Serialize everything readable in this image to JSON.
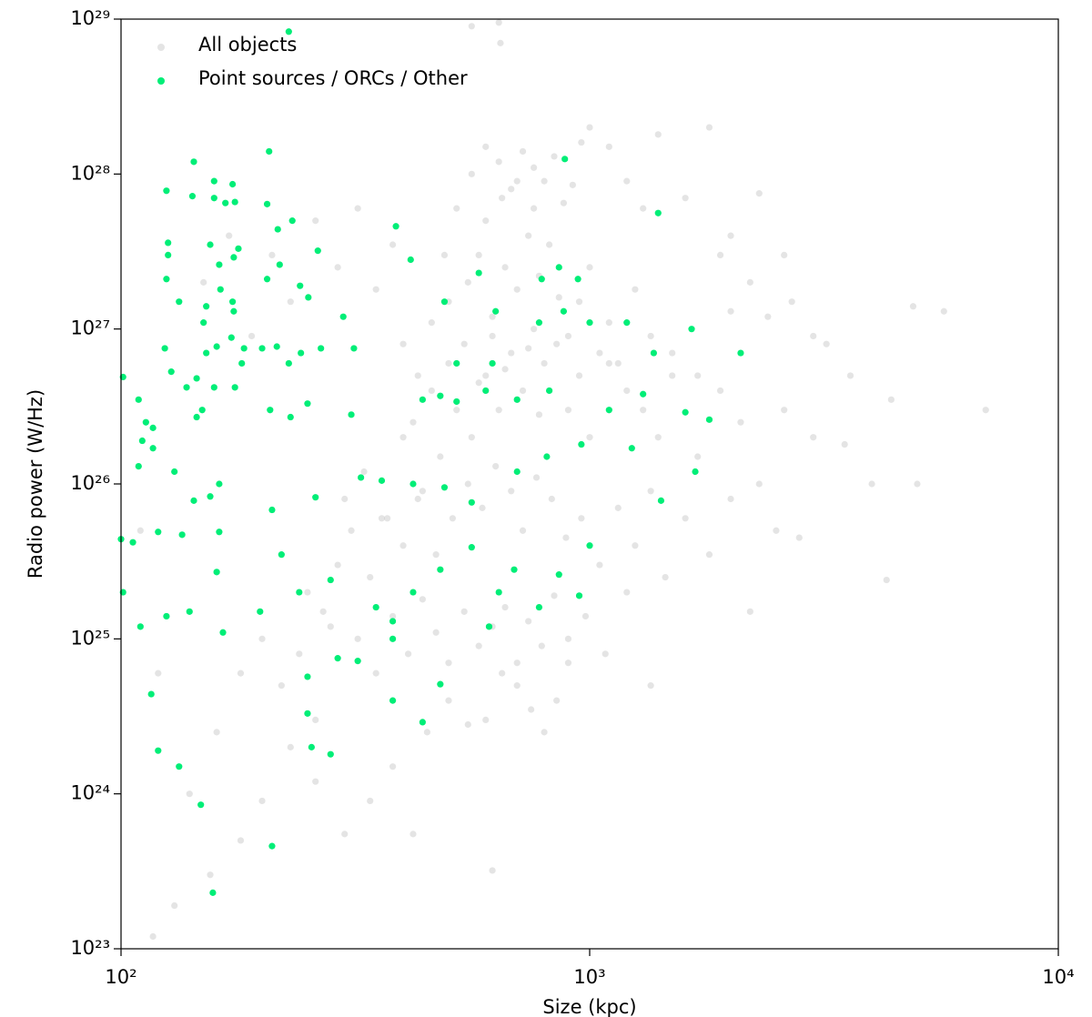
{
  "chart_data": {
    "type": "scatter",
    "xlabel": "Size (kpc)",
    "ylabel": "Radio power (W/Hz)",
    "xscale": "log",
    "yscale": "log",
    "xlim": [
      100,
      10000
    ],
    "ylim": [
      1e+23,
      1e+29
    ],
    "xticks": [
      {
        "value": 100,
        "label": "10²"
      },
      {
        "value": 1000,
        "label": "10³"
      },
      {
        "value": 10000,
        "label": "10⁴"
      }
    ],
    "yticks": [
      {
        "value": 1e+23,
        "label": "10²³"
      },
      {
        "value": 1e+24,
        "label": "10²⁴"
      },
      {
        "value": 1e+25,
        "label": "10²⁵"
      },
      {
        "value": 1e+26,
        "label": "10²⁶"
      },
      {
        "value": 1e+27,
        "label": "10²⁷"
      },
      {
        "value": 1e+28,
        "label": "10²⁸"
      },
      {
        "value": 1e+29,
        "label": "10²⁹"
      }
    ],
    "legend": "upper left",
    "series": [
      {
        "name": "All objects",
        "color": "#c4c4c4",
        "x": [
          560,
          640,
          645,
          1900,
          7000,
          5700,
          4900,
          4300,
          620,
          117,
          130,
          155,
          180,
          200,
          230,
          260,
          300,
          340,
          380,
          420,
          450,
          500,
          550,
          600,
          650,
          700,
          750,
          800,
          850,
          900,
          300,
          330,
          360,
          400,
          440,
          480,
          520,
          560,
          600,
          640,
          680,
          720,
          760,
          800,
          850,
          900,
          950,
          1000,
          1100,
          1200,
          1300,
          1400,
          1500,
          1700,
          1900,
          2100,
          2300,
          2600,
          3000,
          3500,
          500,
          550,
          580,
          620,
          660,
          700,
          740,
          780,
          820,
          860,
          400,
          430,
          460,
          490,
          520,
          560,
          600,
          650,
          700,
          760,
          900,
          950,
          1000,
          1050,
          1100,
          1150,
          1250,
          1350,
          1500,
          1700,
          250,
          270,
          290,
          310,
          340,
          370,
          400,
          430,
          470,
          510,
          550,
          590,
          630,
          680,
          720,
          770,
          830,
          890,
          960,
          1050,
          1150,
          1250,
          1350,
          1450,
          1600,
          1800,
          2000,
          2200,
          2500,
          2800,
          200,
          220,
          240,
          260,
          280,
          180,
          160,
          140,
          120,
          110,
          320,
          350,
          380,
          410,
          440,
          470,
          500,
          540,
          580,
          620,
          660,
          700,
          740,
          790,
          840,
          900,
          980,
          1080,
          1200,
          1350,
          150,
          170,
          190,
          210,
          230,
          260,
          290,
          320,
          350,
          380,
          600,
          640,
          680,
          720,
          760,
          800,
          840,
          880,
          920,
          960,
          1000,
          1100,
          1200,
          1300,
          1400,
          1600,
          1800,
          2000,
          2300,
          2600,
          3200,
          3600,
          4000,
          4400,
          5000,
          3000,
          2700,
          2400,
          2200,
          2000,
          420,
          460,
          500,
          540,
          580,
          620,
          660,
          700,
          740,
          780
        ],
        "values": [
          9e+28,
          9.5e+28,
          7e+28,
          3e+27,
          3e+26,
          1.3e+27,
          1.4e+27,
          2.4e+25,
          3.2e+23,
          1.2e+23,
          1.9e+23,
          3e+23,
          5e+23,
          9e+23,
          2e+24,
          1.2e+24,
          5.5e+23,
          9e+23,
          1.5e+24,
          5.5e+23,
          2.5e+24,
          4e+24,
          2.8e+24,
          3e+24,
          6e+24,
          5e+24,
          3.5e+24,
          2.5e+24,
          4e+24,
          7e+24,
          8e+25,
          1.2e+26,
          6e+25,
          2e+26,
          9e+25,
          1.5e+26,
          3e+26,
          2e+26,
          5e+26,
          3e+26,
          7e+26,
          4e+26,
          1e+27,
          6e+26,
          8e+26,
          3e+26,
          5e+26,
          2e+26,
          6e+26,
          4e+26,
          3e+26,
          2e+26,
          5e+26,
          1.5e+26,
          4e+26,
          2.5e+26,
          1e+26,
          3e+26,
          2e+26,
          1.8e+26,
          1.5e+27,
          2e+27,
          3e+27,
          1.2e+27,
          2.5e+27,
          1.8e+27,
          4e+27,
          2.2e+27,
          3.5e+27,
          1.6e+27,
          8e+26,
          5e+26,
          1.1e+27,
          3e+27,
          6e+27,
          1e+28,
          5e+27,
          7e+27,
          9e+27,
          6e+27,
          9e+26,
          1.5e+27,
          2.5e+27,
          7e+26,
          1.1e+27,
          6e+26,
          1.8e+27,
          9e+26,
          7e+26,
          5e+26,
          2e+25,
          1.5e+25,
          3e+25,
          5e+25,
          2.5e+25,
          6e+25,
          4e+25,
          8e+25,
          3.5e+25,
          6e+25,
          1e+26,
          7e+25,
          1.3e+26,
          9e+25,
          5e+25,
          1.1e+26,
          8e+25,
          4.5e+25,
          6e+25,
          3e+25,
          7e+25,
          4e+25,
          9e+25,
          2.5e+25,
          6e+25,
          3.5e+25,
          8e+25,
          1.5e+25,
          5e+25,
          4.5e+25,
          1e+25,
          5e+24,
          8e+24,
          3e+24,
          1.2e+25,
          6e+24,
          2.5e+24,
          1e+24,
          6e+24,
          5e+25,
          1e+25,
          6e+24,
          1.4e+25,
          8e+24,
          1.8e+25,
          1.1e+25,
          7e+24,
          1.5e+25,
          9e+24,
          1.2e+25,
          1.6e+25,
          7e+24,
          1.3e+25,
          9e+24,
          1.9e+25,
          1e+25,
          1.4e+25,
          8e+24,
          2e+25,
          5e+24,
          2e+27,
          4e+27,
          9e+26,
          3e+27,
          1.5e+27,
          5e+27,
          2.5e+27,
          6e+27,
          1.8e+27,
          3.5e+27,
          1.5e+28,
          1.2e+28,
          8e+27,
          1.4e+28,
          1.1e+28,
          9e+27,
          1.3e+28,
          6.5e+27,
          8.5e+27,
          1.6e+28,
          2e+28,
          1.5e+28,
          9e+27,
          6e+27,
          1.8e+28,
          7e+27,
          2e+28,
          4e+27,
          7.5e+27,
          3e+27,
          8e+26,
          5e+26,
          1e+26,
          3.5e+26,
          1e+26,
          9e+26,
          1.5e+27,
          1.2e+27,
          2e+27,
          1.3e+27,
          2.5e+26,
          4e+26,
          6e+26,
          8e+26,
          4.5e+26,
          9e+26,
          5.5e+26,
          3.5e+26,
          7.5e+26,
          2.8e+26
        ]
      },
      {
        "name": "Point sources / ORCs / Other",
        "color": "#00ee77",
        "x": [
          228,
          207,
          143,
          885,
          125,
          142,
          158,
          173,
          158,
          167,
          175,
          205,
          232,
          216,
          386,
          1400,
          126,
          126,
          155,
          178,
          174,
          162,
          218,
          263,
          415,
          125,
          163,
          205,
          241,
          133,
          152,
          174,
          173,
          251,
          298,
          490,
          580,
          790,
          860,
          944,
          124,
          150,
          152,
          160,
          172,
          183,
          200,
          215,
          242,
          267,
          314,
          128,
          138,
          145,
          158,
          175,
          181,
          228,
          101,
          109,
          113,
          117,
          111,
          117,
          109,
          145,
          149,
          208,
          230,
          250,
          310,
          440,
          480,
          520,
          600,
          700,
          820,
          1100,
          1300,
          1600,
          1800,
          2100,
          1650,
          1370,
          1200,
          1000,
          880,
          780,
          630,
          520,
          620,
          130,
          155,
          162,
          143,
          100,
          106,
          120,
          135,
          162,
          210,
          260,
          325,
          360,
          420,
          490,
          560,
          700,
          810,
          960,
          1230,
          1420,
          1680,
          101,
          110,
          125,
          140,
          160,
          165,
          198,
          220,
          240,
          280,
          350,
          380,
          420,
          480,
          560,
          640,
          690,
          780,
          860,
          950,
          1000,
          610,
          380,
          290,
          320,
          250,
          480,
          380,
          440,
          250,
          255,
          280,
          116,
          120,
          133,
          148,
          210,
          157
        ],
        "values": [
          8.3e+28,
          1.4e+28,
          1.2e+28,
          1.25e+28,
          7.8e+27,
          7.2e+27,
          9e+27,
          8.6e+27,
          7e+27,
          6.5e+27,
          6.6e+27,
          6.4e+27,
          5e+27,
          4.4e+27,
          4.6e+27,
          5.6e+27,
          3.6e+27,
          3e+27,
          3.5e+27,
          3.3e+27,
          2.9e+27,
          2.6e+27,
          2.6e+27,
          3.2e+27,
          2.8e+27,
          2.1e+27,
          1.8e+27,
          2.1e+27,
          1.9e+27,
          1.5e+27,
          1.4e+27,
          1.3e+27,
          1.5e+27,
          1.6e+27,
          1.2e+27,
          1.5e+27,
          2.3e+27,
          2.1e+27,
          2.5e+27,
          2.1e+27,
          7.5e+26,
          1.1e+27,
          7e+26,
          7.7e+26,
          8.8e+26,
          7.5e+26,
          7.5e+26,
          7.7e+26,
          7e+26,
          7.5e+26,
          7.5e+26,
          5.3e+26,
          4.2e+26,
          4.8e+26,
          4.2e+26,
          4.2e+26,
          6e+26,
          6e+26,
          4.9e+26,
          3.5e+26,
          2.5e+26,
          2.3e+26,
          1.9e+26,
          1.7e+26,
          1.3e+26,
          2.7e+26,
          3e+26,
          3e+26,
          2.7e+26,
          3.3e+26,
          2.8e+26,
          3.5e+26,
          3.7e+26,
          3.4e+26,
          4e+26,
          3.5e+26,
          4e+26,
          3e+26,
          3.8e+26,
          2.9e+26,
          2.6e+26,
          7e+26,
          1e+27,
          7e+26,
          1.1e+27,
          1.1e+27,
          1.3e+27,
          1.1e+27,
          1.3e+27,
          6e+26,
          6e+26,
          1.2e+26,
          8.3e+25,
          1e+26,
          7.8e+25,
          4.4e+25,
          4.2e+25,
          4.9e+25,
          4.7e+25,
          4.9e+25,
          6.8e+25,
          8.2e+25,
          1.1e+26,
          1.05e+26,
          1e+26,
          9.5e+25,
          7.6e+25,
          1.2e+26,
          1.5e+26,
          1.8e+26,
          1.7e+26,
          7.8e+25,
          1.2e+26,
          2e+25,
          1.2e+25,
          1.4e+25,
          1.5e+25,
          2.7e+25,
          1.1e+25,
          1.5e+25,
          3.5e+25,
          2e+25,
          2.4e+25,
          1.6e+25,
          1.3e+25,
          2e+25,
          2.8e+25,
          3.9e+25,
          2e+25,
          2.8e+25,
          1.6e+25,
          2.6e+25,
          1.9e+25,
          4e+25,
          1.2e+25,
          1e+25,
          7.5e+24,
          7.2e+24,
          5.7e+24,
          5.1e+24,
          4e+24,
          2.9e+24,
          3.3e+24,
          2e+24,
          1.8e+24,
          4.4e+24,
          1.9e+24,
          1.5e+24,
          8.5e+23,
          4.6e+23,
          2.3e+23
        ]
      }
    ]
  }
}
